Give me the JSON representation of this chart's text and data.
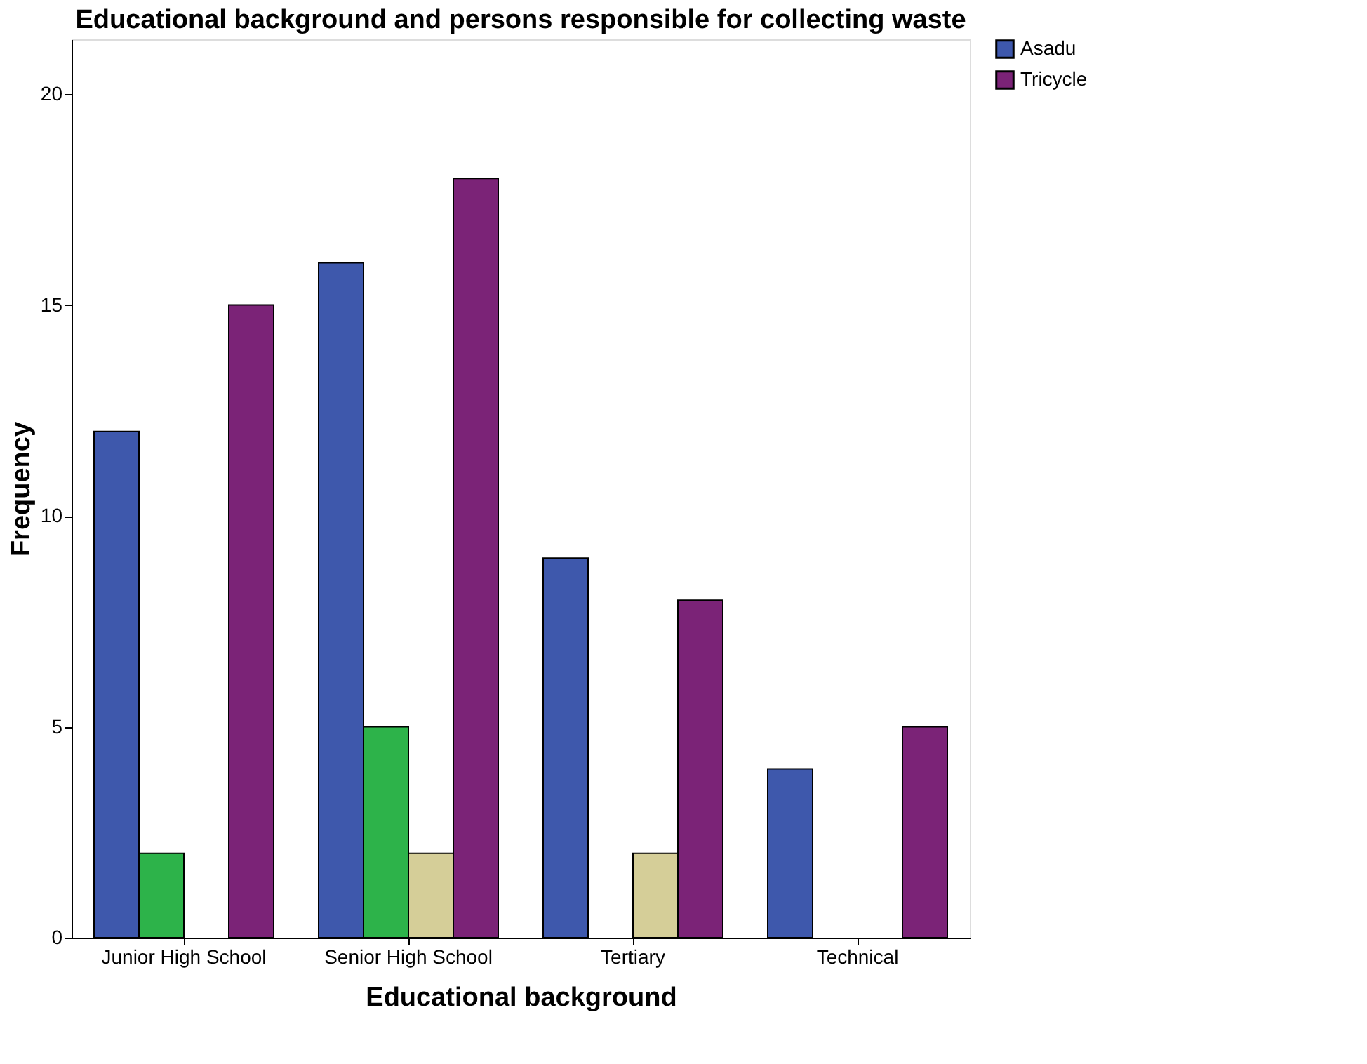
{
  "chart_data": {
    "type": "bar",
    "title": "Educational background and persons responsible for collecting waste",
    "xlabel": "Educational background",
    "ylabel": "Frequency",
    "categories": [
      "Junior High School",
      "Senior High School",
      "Tertiary",
      "Technical"
    ],
    "series": [
      {
        "name": "Asadu",
        "color": "#3e58ac",
        "values": [
          12,
          16,
          9,
          4
        ]
      },
      {
        "color": "#2db34a",
        "values": [
          2,
          5,
          null,
          null
        ]
      },
      {
        "color": "#d5ce98",
        "values": [
          null,
          2,
          2,
          null
        ]
      },
      {
        "name": "Tricycle",
        "color": "#7b2377",
        "values": [
          15,
          18,
          8,
          5
        ]
      }
    ],
    "ylim": [
      0,
      21.3
    ],
    "yticks": [
      0,
      5,
      10,
      15,
      20
    ],
    "grid": false,
    "legend": "top right"
  }
}
